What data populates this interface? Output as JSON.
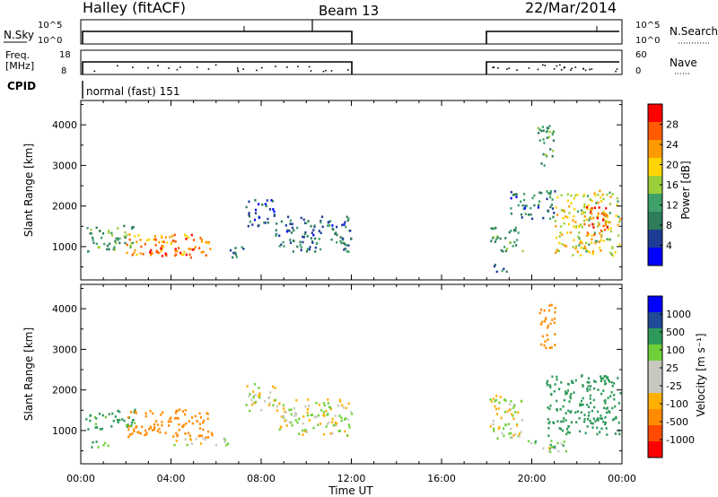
{
  "header": {
    "radar_title": "Halley (fitACF)",
    "beam_label": "Beam 13",
    "date_label": "22/Mar/2014"
  },
  "strip_panels": {
    "nsky_label": "N.Sky",
    "nsearch_label": "N.Search",
    "count_ticks_left": [
      "10^5",
      "10^0"
    ],
    "count_ticks_right": [
      "10^5",
      "10^0"
    ],
    "freq_label_line1": "Freq.",
    "freq_label_line2": "[MHz]",
    "freq_ticks": [
      "18",
      "8"
    ],
    "nave_label": "Nave",
    "nave_ticks": [
      "60",
      "0"
    ],
    "cpid_label": "CPID",
    "cpid_text": "normal (fast) 151"
  },
  "colors": {
    "power_scale": [
      "#0000ff",
      "#1e3c96",
      "#2e7d5a",
      "#3fa06a",
      "#9bcf3a",
      "#ffd400",
      "#ff9a00",
      "#ff5a00",
      "#ff0000"
    ],
    "velocity_scale": [
      "#ff0000",
      "#ff4a00",
      "#ff8c00",
      "#ffb000",
      "#c8c8c0",
      "#c8c8c0",
      "#6fd03a",
      "#2e9a5a",
      "#1e4a96",
      "#0000ff"
    ]
  },
  "chart_data": [
    {
      "type": "heatmap",
      "name": "power-panel",
      "ylabel": "Slant Range [km]",
      "xlabel": "",
      "ylim": [
        180,
        4600
      ],
      "xlim": [
        0,
        24
      ],
      "yticks": [
        "1000",
        "2000",
        "3000",
        "4000"
      ],
      "colorbar_label": "Power [dB]",
      "colorbar_ticks": [
        "28",
        "24",
        "20",
        "16",
        "12",
        "8",
        "4"
      ],
      "colorbar_range": [
        0,
        32
      ],
      "data_gap_hours": [
        12.0,
        18.0
      ],
      "echo_regions": [
        {
          "t0": 0.2,
          "t1": 2.4,
          "r0": 900,
          "r1": 1550,
          "value": 12
        },
        {
          "t0": 2.0,
          "t1": 5.8,
          "r0": 800,
          "r1": 1350,
          "value": 24
        },
        {
          "t0": 3.0,
          "t1": 5.0,
          "r0": 750,
          "r1": 1000,
          "value": 28
        },
        {
          "t0": 6.5,
          "t1": 7.2,
          "r0": 750,
          "r1": 1100,
          "value": 10
        },
        {
          "t0": 7.3,
          "t1": 8.6,
          "r0": 1500,
          "r1": 2200,
          "value": 6
        },
        {
          "t0": 8.6,
          "t1": 12.0,
          "r0": 900,
          "r1": 1800,
          "value": 8
        },
        {
          "t0": 18.1,
          "t1": 19.6,
          "r0": 900,
          "r1": 1500,
          "value": 12
        },
        {
          "t0": 18.3,
          "t1": 19.2,
          "r0": 400,
          "r1": 600,
          "value": 8
        },
        {
          "t0": 19.0,
          "t1": 21.0,
          "r0": 1700,
          "r1": 2400,
          "value": 8
        },
        {
          "t0": 20.2,
          "t1": 21.0,
          "r0": 3000,
          "r1": 4000,
          "value": 12
        },
        {
          "t0": 21.0,
          "t1": 23.9,
          "r0": 800,
          "r1": 2400,
          "value": 18
        },
        {
          "t0": 22.3,
          "t1": 23.5,
          "r0": 1100,
          "r1": 2000,
          "value": 26
        }
      ]
    },
    {
      "type": "heatmap",
      "name": "velocity-panel",
      "ylabel": "Slant Range [km]",
      "xlabel": "Time UT",
      "ylim": [
        180,
        4600
      ],
      "xlim": [
        0,
        24
      ],
      "yticks": [
        "1000",
        "2000",
        "3000",
        "4000"
      ],
      "xticks": [
        "00:00",
        "04:00",
        "08:00",
        "12:00",
        "16:00",
        "20:00",
        "00:00"
      ],
      "colorbar_label": "Velocity [m s⁻¹]",
      "colorbar_ticks": [
        "1000",
        "500",
        "100",
        "25",
        "-25",
        "-100",
        "-500",
        "-1000"
      ],
      "data_gap_hours": [
        12.0,
        18.0
      ],
      "echo_regions": [
        {
          "t0": 0.2,
          "t1": 2.4,
          "r0": 1050,
          "r1": 1550,
          "value": 150
        },
        {
          "t0": 0.2,
          "t1": 1.2,
          "r0": 600,
          "r1": 800,
          "value": 80
        },
        {
          "t0": 2.0,
          "t1": 5.8,
          "r0": 850,
          "r1": 1550,
          "value": -200
        },
        {
          "t0": 4.0,
          "t1": 6.5,
          "r0": 650,
          "r1": 850,
          "value": 0
        },
        {
          "t0": 7.3,
          "t1": 8.6,
          "r0": 1500,
          "r1": 2200,
          "value": 0
        },
        {
          "t0": 8.6,
          "t1": 12.0,
          "r0": 900,
          "r1": 1800,
          "value": 0
        },
        {
          "t0": 18.1,
          "t1": 19.6,
          "r0": 800,
          "r1": 1900,
          "value": 0
        },
        {
          "t0": 20.3,
          "t1": 21.0,
          "r0": 3000,
          "r1": 4200,
          "value": -200
        },
        {
          "t0": 20.6,
          "t1": 23.9,
          "r0": 900,
          "r1": 2400,
          "value": 300
        },
        {
          "t0": 19.5,
          "t1": 21.5,
          "r0": 500,
          "r1": 800,
          "value": 60
        }
      ]
    }
  ]
}
